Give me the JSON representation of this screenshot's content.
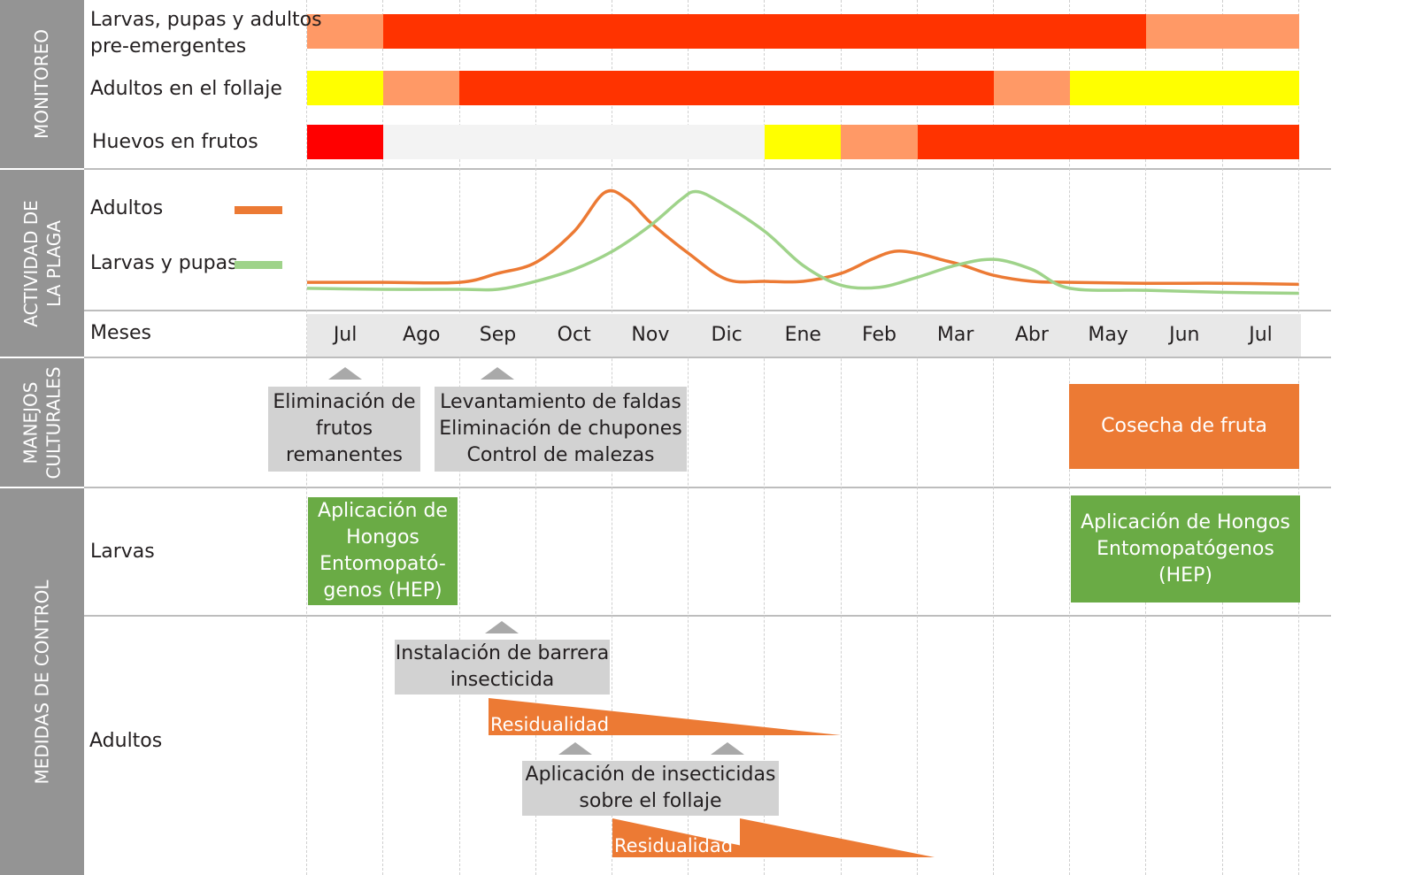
{
  "sections": {
    "monitoreo": "MONITOREO",
    "actividad": "ACTIVIDAD DE\nLA PLAGA",
    "manejos": "MANEJOS\nCULTURALES",
    "medidas": "MEDIDAS DE CONTROL"
  },
  "colors": {
    "red": "#ff0000",
    "orange_red": "#ff3300",
    "light_orange": "#ff9966",
    "yellow": "#ffff00",
    "light_grey": "#f3f3f3",
    "adultos_line": "#ec7a34",
    "larvas_line": "#9fd38a",
    "green_box": "#6aab45",
    "orange_box": "#ec7a34",
    "grey_box": "#d2d2d2",
    "sidebar": "#949494"
  },
  "monitoreo": {
    "rows": [
      {
        "label": "Larvas, pupas y adultos\npre-emergentes",
        "levels": [
          "light_orange",
          "orange_red",
          "orange_red",
          "orange_red",
          "orange_red",
          "orange_red",
          "orange_red",
          "orange_red",
          "orange_red",
          "orange_red",
          "orange_red",
          "light_orange",
          "light_orange"
        ]
      },
      {
        "label": "Adultos en el follaje",
        "levels": [
          "yellow",
          "light_orange",
          "orange_red",
          "orange_red",
          "orange_red",
          "orange_red",
          "orange_red",
          "orange_red",
          "orange_red",
          "light_orange",
          "yellow",
          "yellow",
          "yellow"
        ]
      },
      {
        "label": "Huevos en frutos",
        "levels": [
          "red",
          "light_grey",
          "light_grey",
          "light_grey",
          "light_grey",
          "light_grey",
          "yellow",
          "light_orange",
          "orange_red",
          "orange_red",
          "orange_red",
          "orange_red",
          "orange_red"
        ]
      }
    ]
  },
  "chart_data": {
    "type": "line",
    "title": "",
    "xlabel": "Meses",
    "ylabel": "",
    "categories": [
      "Jul",
      "Ago",
      "Sep",
      "Oct",
      "Nov",
      "Dic",
      "Ene",
      "Feb",
      "Mar",
      "Abr",
      "May",
      "Jun",
      "Jul"
    ],
    "legend_position": "left",
    "series": [
      {
        "name": "Adultos",
        "color": "#ec7a34",
        "points": [
          [
            0,
            0.05
          ],
          [
            1,
            0.05
          ],
          [
            2,
            0.05
          ],
          [
            2.5,
            0.14
          ],
          [
            3,
            0.25
          ],
          [
            3.5,
            0.56
          ],
          [
            3.9,
            0.95
          ],
          [
            4.2,
            0.88
          ],
          [
            4.5,
            0.65
          ],
          [
            5,
            0.34
          ],
          [
            5.5,
            0.08
          ],
          [
            6,
            0.06
          ],
          [
            6.5,
            0.06
          ],
          [
            7,
            0.14
          ],
          [
            7.4,
            0.28
          ],
          [
            7.7,
            0.36
          ],
          [
            8,
            0.34
          ],
          [
            8.3,
            0.28
          ],
          [
            8.6,
            0.22
          ],
          [
            9,
            0.12
          ],
          [
            9.5,
            0.06
          ],
          [
            10,
            0.05
          ],
          [
            11,
            0.04
          ],
          [
            12,
            0.04
          ],
          [
            13,
            0.03
          ]
        ]
      },
      {
        "name": "Larvas y pupas",
        "color": "#9fd38a",
        "points": [
          [
            0,
            -0.01
          ],
          [
            1,
            -0.02
          ],
          [
            2,
            -0.02
          ],
          [
            2.5,
            -0.02
          ],
          [
            3,
            0.06
          ],
          [
            3.5,
            0.18
          ],
          [
            4,
            0.36
          ],
          [
            4.5,
            0.62
          ],
          [
            4.9,
            0.88
          ],
          [
            5.1,
            0.96
          ],
          [
            5.4,
            0.86
          ],
          [
            6,
            0.56
          ],
          [
            6.5,
            0.22
          ],
          [
            7,
            0.02
          ],
          [
            7.5,
            0.0
          ],
          [
            8,
            0.1
          ],
          [
            8.5,
            0.22
          ],
          [
            9,
            0.28
          ],
          [
            9.5,
            0.18
          ],
          [
            10,
            -0.01
          ],
          [
            11,
            -0.03
          ],
          [
            12,
            -0.05
          ],
          [
            13,
            -0.06
          ]
        ]
      }
    ],
    "ylim": [
      -0.1,
      1.0
    ],
    "grid": "dashed vertical at month boundaries"
  },
  "actividad": {
    "legend": [
      {
        "label": "Adultos",
        "color": "#ec7a34"
      },
      {
        "label": "Larvas y pupas",
        "color": "#9fd38a"
      }
    ]
  },
  "meses": {
    "label": "Meses",
    "months": [
      "Jul",
      "Ago",
      "Sep",
      "Oct",
      "Nov",
      "Dic",
      "Ene",
      "Feb",
      "Mar",
      "Abr",
      "May",
      "Jun",
      "Jul"
    ]
  },
  "manejos": {
    "box1": "Eliminación de\nfrutos\nremanentes",
    "box2": "Levantamiento de faldas\nEliminación de chupones\nControl de malezas",
    "cosecha": "Cosecha de fruta"
  },
  "medidas": {
    "larvas_label": "Larvas",
    "adultos_label": "Adultos",
    "hep_left": "Aplicación de\nHongos\nEntomopató-\ngenos (HEP)",
    "hep_right": "Aplicación de Hongos\nEntomopatógenos\n(HEP)",
    "barrera": "Instalación de barrera\ninsecticida",
    "residualidad_1": "Residualidad",
    "insecticidas": "Aplicación de insecticidas\nsobre el follaje",
    "residualidad_2": "Residualidad"
  }
}
